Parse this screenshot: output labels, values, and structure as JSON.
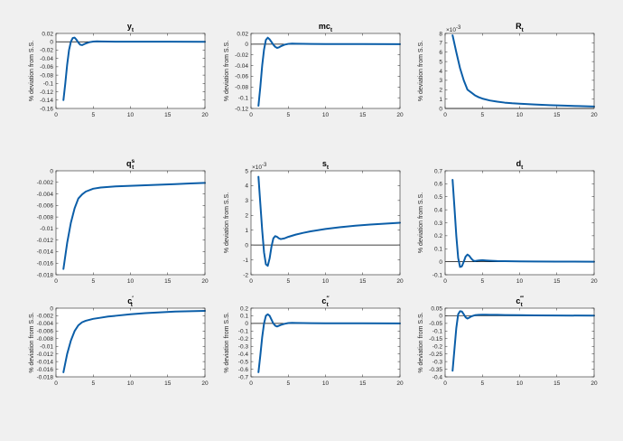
{
  "chart_data": [
    {
      "type": "line",
      "title": "y",
      "title_sub": "t",
      "title_sup": "",
      "ylabel": "% deviation from S.S.",
      "xlim": [
        0,
        20
      ],
      "ylim": [
        -0.16,
        0.02
      ],
      "xticks": [
        0,
        5,
        10,
        15,
        20
      ],
      "xtick_labels": [
        "0",
        "5",
        "10",
        "15",
        "20"
      ],
      "yticks": [
        -0.16,
        -0.14,
        -0.12,
        -0.1,
        -0.08,
        -0.06,
        -0.04,
        -0.02,
        0,
        0.02
      ],
      "ytick_labels": [
        "-0.16",
        "-0.14",
        "-0.12",
        "-0.1",
        "-0.08",
        "-0.06",
        "-0.04",
        "-0.02",
        "0",
        "0.02"
      ],
      "exponent": "",
      "zero_line": true,
      "series": [
        {
          "x": [
            1,
            1.25,
            1.5,
            1.75,
            2,
            2.25,
            2.5,
            2.75,
            3,
            3.25,
            3.5,
            3.75,
            4,
            4.5,
            5,
            5.5,
            6,
            7,
            8,
            10,
            12,
            15,
            20
          ],
          "y": [
            -0.14,
            -0.1,
            -0.055,
            -0.02,
            0.0,
            0.009,
            0.01,
            0.005,
            -0.002,
            -0.007,
            -0.008,
            -0.006,
            -0.004,
            -0.001,
            0.0005,
            0.001,
            0.0008,
            0.0005,
            0.0003,
            0.0002,
            0.0001,
            0.0001,
            0.0
          ]
        }
      ]
    },
    {
      "type": "line",
      "title": "mc",
      "title_sub": "t",
      "title_sup": "",
      "ylabel": "% deviation from S.S.",
      "xlim": [
        0,
        20
      ],
      "ylim": [
        -0.12,
        0.02
      ],
      "xticks": [
        0,
        5,
        10,
        15,
        20
      ],
      "xtick_labels": [
        "0",
        "5",
        "10",
        "15",
        "20"
      ],
      "yticks": [
        -0.12,
        -0.1,
        -0.08,
        -0.06,
        -0.04,
        -0.02,
        0,
        0.02
      ],
      "ytick_labels": [
        "-0.12",
        "-0.1",
        "-0.08",
        "-0.06",
        "-0.04",
        "-0.02",
        "0",
        "0.02"
      ],
      "exponent": "",
      "zero_line": true,
      "series": [
        {
          "x": [
            1,
            1.25,
            1.5,
            1.75,
            2,
            2.25,
            2.5,
            2.75,
            3,
            3.25,
            3.5,
            3.75,
            4,
            4.5,
            5,
            5.5,
            6,
            7,
            8,
            10,
            12,
            15,
            20
          ],
          "y": [
            -0.115,
            -0.08,
            -0.04,
            -0.01,
            0.008,
            0.012,
            0.009,
            0.004,
            -0.001,
            -0.005,
            -0.007,
            -0.006,
            -0.004,
            -0.001,
            0.0005,
            0.001,
            0.0008,
            0.0005,
            0.0003,
            0.0002,
            0.0001,
            0.0001,
            0.0
          ]
        }
      ]
    },
    {
      "type": "line",
      "title": "R",
      "title_sub": "t",
      "title_sup": "",
      "ylabel": "% deviation from S.S.",
      "xlim": [
        0,
        20
      ],
      "ylim": [
        0,
        8
      ],
      "xticks": [
        0,
        5,
        10,
        15,
        20
      ],
      "xtick_labels": [
        "0",
        "5",
        "10",
        "15",
        "20"
      ],
      "yticks": [
        0,
        1,
        2,
        3,
        4,
        5,
        6,
        7,
        8
      ],
      "ytick_labels": [
        "0",
        "1",
        "2",
        "3",
        "4",
        "5",
        "6",
        "7",
        "8"
      ],
      "exponent": "-3",
      "zero_line": true,
      "series": [
        {
          "x": [
            1,
            1.5,
            2,
            2.5,
            3,
            3.5,
            4,
            4.5,
            5,
            6,
            7,
            8,
            9,
            10,
            12,
            14,
            16,
            18,
            20
          ],
          "y": [
            7.8,
            6.0,
            4.3,
            3.0,
            2.0,
            1.7,
            1.4,
            1.2,
            1.05,
            0.85,
            0.72,
            0.62,
            0.55,
            0.5,
            0.42,
            0.35,
            0.3,
            0.25,
            0.2
          ]
        }
      ]
    },
    {
      "type": "line",
      "title": "q",
      "title_sub": "t",
      "title_sup": "s",
      "ylabel": "",
      "xlim": [
        0,
        20
      ],
      "ylim": [
        -0.018,
        0
      ],
      "xticks": [
        0,
        5,
        10,
        15,
        20
      ],
      "xtick_labels": [
        "0",
        "5",
        "10",
        "15",
        "20"
      ],
      "yticks": [
        -0.018,
        -0.016,
        -0.014,
        -0.012,
        -0.01,
        -0.008,
        -0.006,
        -0.004,
        -0.002,
        0
      ],
      "ytick_labels": [
        "-0.018",
        "-0.016",
        "-0.014",
        "-0.012",
        "-0.01",
        "-0.008",
        "-0.006",
        "-0.004",
        "-0.002",
        "0"
      ],
      "exponent": "",
      "zero_line": false,
      "series": [
        {
          "x": [
            1,
            1.5,
            2,
            2.5,
            3,
            3.5,
            4,
            5,
            6,
            7,
            8,
            10,
            12,
            14,
            16,
            18,
            20
          ],
          "y": [
            -0.017,
            -0.0125,
            -0.009,
            -0.0065,
            -0.0048,
            -0.0041,
            -0.0036,
            -0.0031,
            -0.0029,
            -0.0028,
            -0.0027,
            -0.0026,
            -0.0025,
            -0.0024,
            -0.0023,
            -0.0022,
            -0.0021
          ]
        }
      ]
    },
    {
      "type": "line",
      "title": "s",
      "title_sub": "t",
      "title_sup": "",
      "ylabel": "% deviation from S.S.",
      "xlim": [
        0,
        20
      ],
      "ylim": [
        -2,
        5
      ],
      "xticks": [
        0,
        5,
        10,
        15,
        20
      ],
      "xtick_labels": [
        "0",
        "5",
        "10",
        "15",
        "20"
      ],
      "yticks": [
        -2,
        -1,
        0,
        1,
        2,
        3,
        4,
        5
      ],
      "ytick_labels": [
        "-2",
        "-1",
        "0",
        "1",
        "2",
        "3",
        "4",
        "5"
      ],
      "exponent": "-3",
      "zero_line": true,
      "series": [
        {
          "x": [
            1,
            1.25,
            1.5,
            1.75,
            2,
            2.25,
            2.5,
            2.75,
            3,
            3.25,
            3.5,
            3.75,
            4,
            4.5,
            5,
            6,
            7,
            8,
            10,
            12,
            14,
            16,
            18,
            20
          ],
          "y": [
            4.6,
            2.8,
            1.0,
            -0.5,
            -1.3,
            -1.4,
            -0.9,
            -0.1,
            0.45,
            0.6,
            0.55,
            0.45,
            0.4,
            0.45,
            0.55,
            0.7,
            0.82,
            0.92,
            1.08,
            1.2,
            1.3,
            1.38,
            1.44,
            1.5
          ]
        }
      ]
    },
    {
      "type": "line",
      "title": "d",
      "title_sub": "t",
      "title_sup": "",
      "ylabel": "% deviation from S.S.",
      "xlim": [
        0,
        20
      ],
      "ylim": [
        -0.1,
        0.7
      ],
      "xticks": [
        0,
        5,
        10,
        15,
        20
      ],
      "xtick_labels": [
        "0",
        "5",
        "10",
        "15",
        "20"
      ],
      "yticks": [
        -0.1,
        0,
        0.1,
        0.2,
        0.3,
        0.4,
        0.5,
        0.6,
        0.7
      ],
      "ytick_labels": [
        "-0.1",
        "0",
        "0.1",
        "0.2",
        "0.3",
        "0.4",
        "0.5",
        "0.6",
        "0.7"
      ],
      "exponent": "",
      "zero_line": true,
      "series": [
        {
          "x": [
            1,
            1.25,
            1.5,
            1.75,
            2,
            2.25,
            2.5,
            2.75,
            3,
            3.25,
            3.5,
            3.75,
            4,
            4.5,
            5,
            5.5,
            6,
            7,
            8,
            10,
            12,
            15,
            20
          ],
          "y": [
            0.63,
            0.42,
            0.2,
            0.03,
            -0.04,
            -0.035,
            0.0,
            0.04,
            0.055,
            0.045,
            0.025,
            0.01,
            0.005,
            0.01,
            0.012,
            0.01,
            0.008,
            0.005,
            0.004,
            0.003,
            0.002,
            0.001,
            0.0
          ]
        }
      ]
    },
    {
      "type": "line",
      "title": "c",
      "title_sub": "t",
      "title_sup": "′",
      "ylabel": "% deviation from S.S.",
      "xlim": [
        0,
        20
      ],
      "ylim": [
        -0.018,
        0
      ],
      "xticks": [
        0,
        5,
        10,
        15,
        20
      ],
      "xtick_labels": [
        "0",
        "5",
        "10",
        "15",
        "20"
      ],
      "yticks": [
        -0.018,
        -0.016,
        -0.014,
        -0.012,
        -0.01,
        -0.008,
        -0.006,
        -0.004,
        -0.002,
        0
      ],
      "ytick_labels": [
        "-0.018",
        "-0.016",
        "-0.014",
        "-0.012",
        "-0.01",
        "-0.008",
        "-0.006",
        "-0.004",
        "-0.002",
        "0"
      ],
      "exponent": "",
      "zero_line": false,
      "series": [
        {
          "x": [
            1,
            1.5,
            2,
            2.5,
            3,
            3.5,
            4,
            5,
            6,
            7,
            8,
            10,
            12,
            14,
            16,
            18,
            20
          ],
          "y": [
            -0.0168,
            -0.012,
            -0.0085,
            -0.006,
            -0.0045,
            -0.0037,
            -0.0033,
            -0.0028,
            -0.0025,
            -0.0022,
            -0.002,
            -0.0016,
            -0.0013,
            -0.0011,
            -0.0009,
            -0.0008,
            -0.0007
          ]
        }
      ]
    },
    {
      "type": "line",
      "title": "c",
      "title_sub": "t",
      "title_sup": "″",
      "ylabel": "% deviation from S.S.",
      "xlim": [
        0,
        20
      ],
      "ylim": [
        -0.7,
        0.2
      ],
      "xticks": [
        0,
        5,
        10,
        15,
        20
      ],
      "xtick_labels": [
        "0",
        "5",
        "10",
        "15",
        "20"
      ],
      "yticks": [
        -0.7,
        -0.6,
        -0.5,
        -0.4,
        -0.3,
        -0.2,
        -0.1,
        0,
        0.1,
        0.2
      ],
      "ytick_labels": [
        "-0.7",
        "-0.6",
        "-0.5",
        "-0.4",
        "-0.3",
        "-0.2",
        "-0.1",
        "0",
        "0.1",
        "0.2"
      ],
      "exponent": "",
      "zero_line": true,
      "series": [
        {
          "x": [
            1,
            1.25,
            1.5,
            1.75,
            2,
            2.25,
            2.5,
            2.75,
            3,
            3.25,
            3.5,
            3.75,
            4,
            4.5,
            5,
            5.5,
            6,
            7,
            8,
            10,
            12,
            15,
            20
          ],
          "y": [
            -0.64,
            -0.42,
            -0.18,
            0.0,
            0.1,
            0.12,
            0.1,
            0.05,
            0.0,
            -0.03,
            -0.04,
            -0.03,
            -0.02,
            -0.005,
            0.005,
            0.008,
            0.006,
            0.004,
            0.003,
            0.002,
            0.001,
            0.001,
            0.0
          ]
        }
      ]
    },
    {
      "type": "line",
      "title": "c",
      "title_sub": "t",
      "title_sup": "‴",
      "ylabel": "% deviation from S.S.",
      "xlim": [
        0,
        20
      ],
      "ylim": [
        -0.4,
        0.05
      ],
      "xticks": [
        0,
        5,
        10,
        15,
        20
      ],
      "xtick_labels": [
        "0",
        "5",
        "10",
        "15",
        "20"
      ],
      "yticks": [
        -0.4,
        -0.35,
        -0.3,
        -0.25,
        -0.2,
        -0.15,
        -0.1,
        -0.05,
        0,
        0.05
      ],
      "ytick_labels": [
        "-0.4",
        "-0.35",
        "-0.3",
        "-0.25",
        "-0.2",
        "-0.15",
        "-0.1",
        "-0.05",
        "0",
        "0.05"
      ],
      "exponent": "",
      "zero_line": true,
      "series": [
        {
          "x": [
            1,
            1.25,
            1.5,
            1.75,
            2,
            2.25,
            2.5,
            2.75,
            3,
            3.25,
            3.5,
            3.75,
            4,
            4.5,
            5,
            5.5,
            6,
            7,
            8,
            10,
            12,
            15,
            20
          ],
          "y": [
            -0.36,
            -0.22,
            -0.08,
            0.01,
            0.03,
            0.028,
            0.01,
            -0.01,
            -0.018,
            -0.012,
            -0.004,
            0.0,
            0.004,
            0.006,
            0.007,
            0.007,
            0.006,
            0.006,
            0.005,
            0.004,
            0.003,
            0.002,
            0.001
          ]
        }
      ]
    }
  ]
}
